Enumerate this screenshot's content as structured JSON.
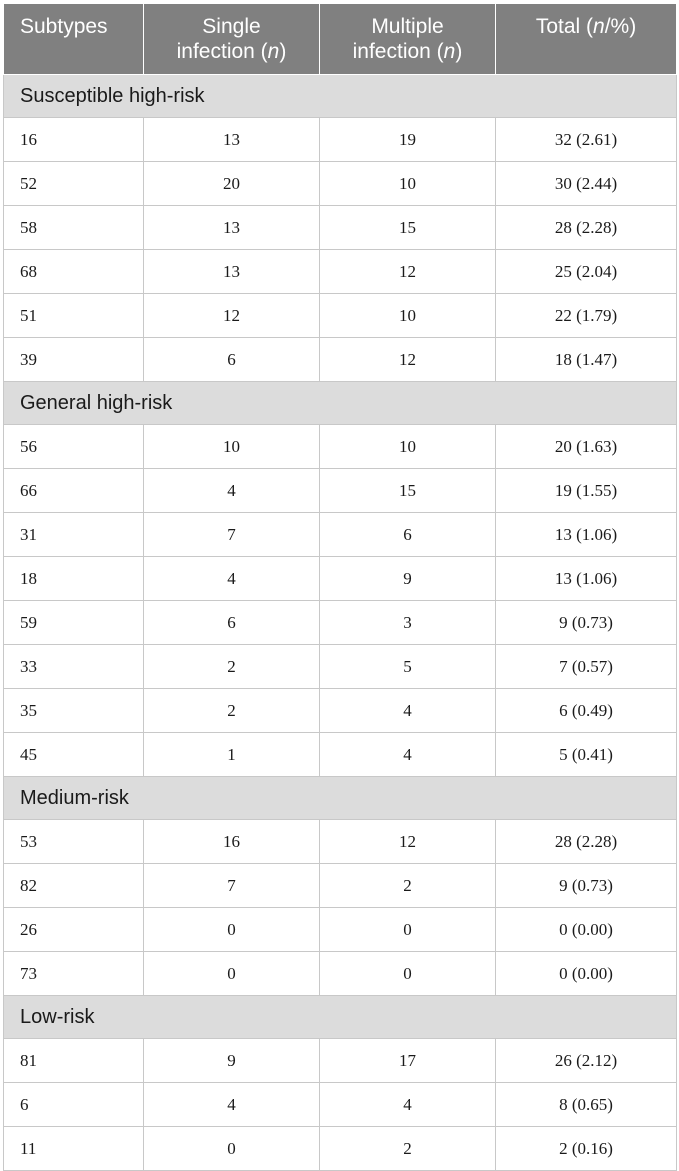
{
  "table": {
    "headers": {
      "subtypes": "Subtypes",
      "single_line1": "Single",
      "single_line2_text": "infection (",
      "single_line2_italic": "n",
      "single_line2_close": ")",
      "multiple_line1": "Multiple",
      "multiple_line2_text": "infection (",
      "multiple_line2_italic": "n",
      "multiple_line2_close": ")",
      "total_text": "Total (",
      "total_italic": "n",
      "total_close": "/%)"
    },
    "groups": [
      {
        "name": "Susceptible high-risk",
        "rows": [
          {
            "subtype": "16",
            "single": "13",
            "multiple": "19",
            "total": "32 (2.61)"
          },
          {
            "subtype": "52",
            "single": "20",
            "multiple": "10",
            "total": "30 (2.44)"
          },
          {
            "subtype": "58",
            "single": "13",
            "multiple": "15",
            "total": "28 (2.28)"
          },
          {
            "subtype": "68",
            "single": "13",
            "multiple": "12",
            "total": "25 (2.04)"
          },
          {
            "subtype": "51",
            "single": "12",
            "multiple": "10",
            "total": "22 (1.79)"
          },
          {
            "subtype": "39",
            "single": "6",
            "multiple": "12",
            "total": "18 (1.47)"
          }
        ]
      },
      {
        "name": "General high-risk",
        "rows": [
          {
            "subtype": "56",
            "single": "10",
            "multiple": "10",
            "total": "20 (1.63)"
          },
          {
            "subtype": "66",
            "single": "4",
            "multiple": "15",
            "total": "19 (1.55)"
          },
          {
            "subtype": "31",
            "single": "7",
            "multiple": "6",
            "total": "13 (1.06)"
          },
          {
            "subtype": "18",
            "single": "4",
            "multiple": "9",
            "total": "13 (1.06)"
          },
          {
            "subtype": "59",
            "single": "6",
            "multiple": "3",
            "total": "9 (0.73)"
          },
          {
            "subtype": "33",
            "single": "2",
            "multiple": "5",
            "total": "7 (0.57)"
          },
          {
            "subtype": "35",
            "single": "2",
            "multiple": "4",
            "total": "6 (0.49)"
          },
          {
            "subtype": "45",
            "single": "1",
            "multiple": "4",
            "total": "5 (0.41)"
          }
        ]
      },
      {
        "name": "Medium-risk",
        "rows": [
          {
            "subtype": "53",
            "single": "16",
            "multiple": "12",
            "total": "28 (2.28)"
          },
          {
            "subtype": "82",
            "single": "7",
            "multiple": "2",
            "total": "9 (0.73)"
          },
          {
            "subtype": "26",
            "single": "0",
            "multiple": "0",
            "total": "0 (0.00)"
          },
          {
            "subtype": "73",
            "single": "0",
            "multiple": "0",
            "total": "0 (0.00)"
          }
        ]
      },
      {
        "name": "Low-risk",
        "rows": [
          {
            "subtype": "81",
            "single": "9",
            "multiple": "17",
            "total": "26 (2.12)"
          },
          {
            "subtype": "6",
            "single": "4",
            "multiple": "4",
            "total": "8 (0.65)"
          },
          {
            "subtype": "11",
            "single": "0",
            "multiple": "2",
            "total": "2 (0.16)"
          }
        ]
      }
    ]
  }
}
